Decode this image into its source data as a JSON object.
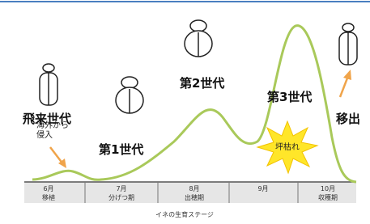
{
  "labels": {
    "invasion": "海外から\n侵入",
    "immigrant_generation": "飛来世代",
    "generation_1": "第1世代",
    "generation_2": "第2世代",
    "generation_3": "第3世代",
    "hopperburn": "坪枯れ",
    "emigration": "移出"
  },
  "timeline": {
    "months": [
      "6月",
      "7月",
      "8月",
      "9月",
      "10月"
    ],
    "stages": [
      "移植",
      "分げつ期",
      "出穂期",
      "",
      "収穫期"
    ],
    "title": "イネの生育ステージ"
  }
}
